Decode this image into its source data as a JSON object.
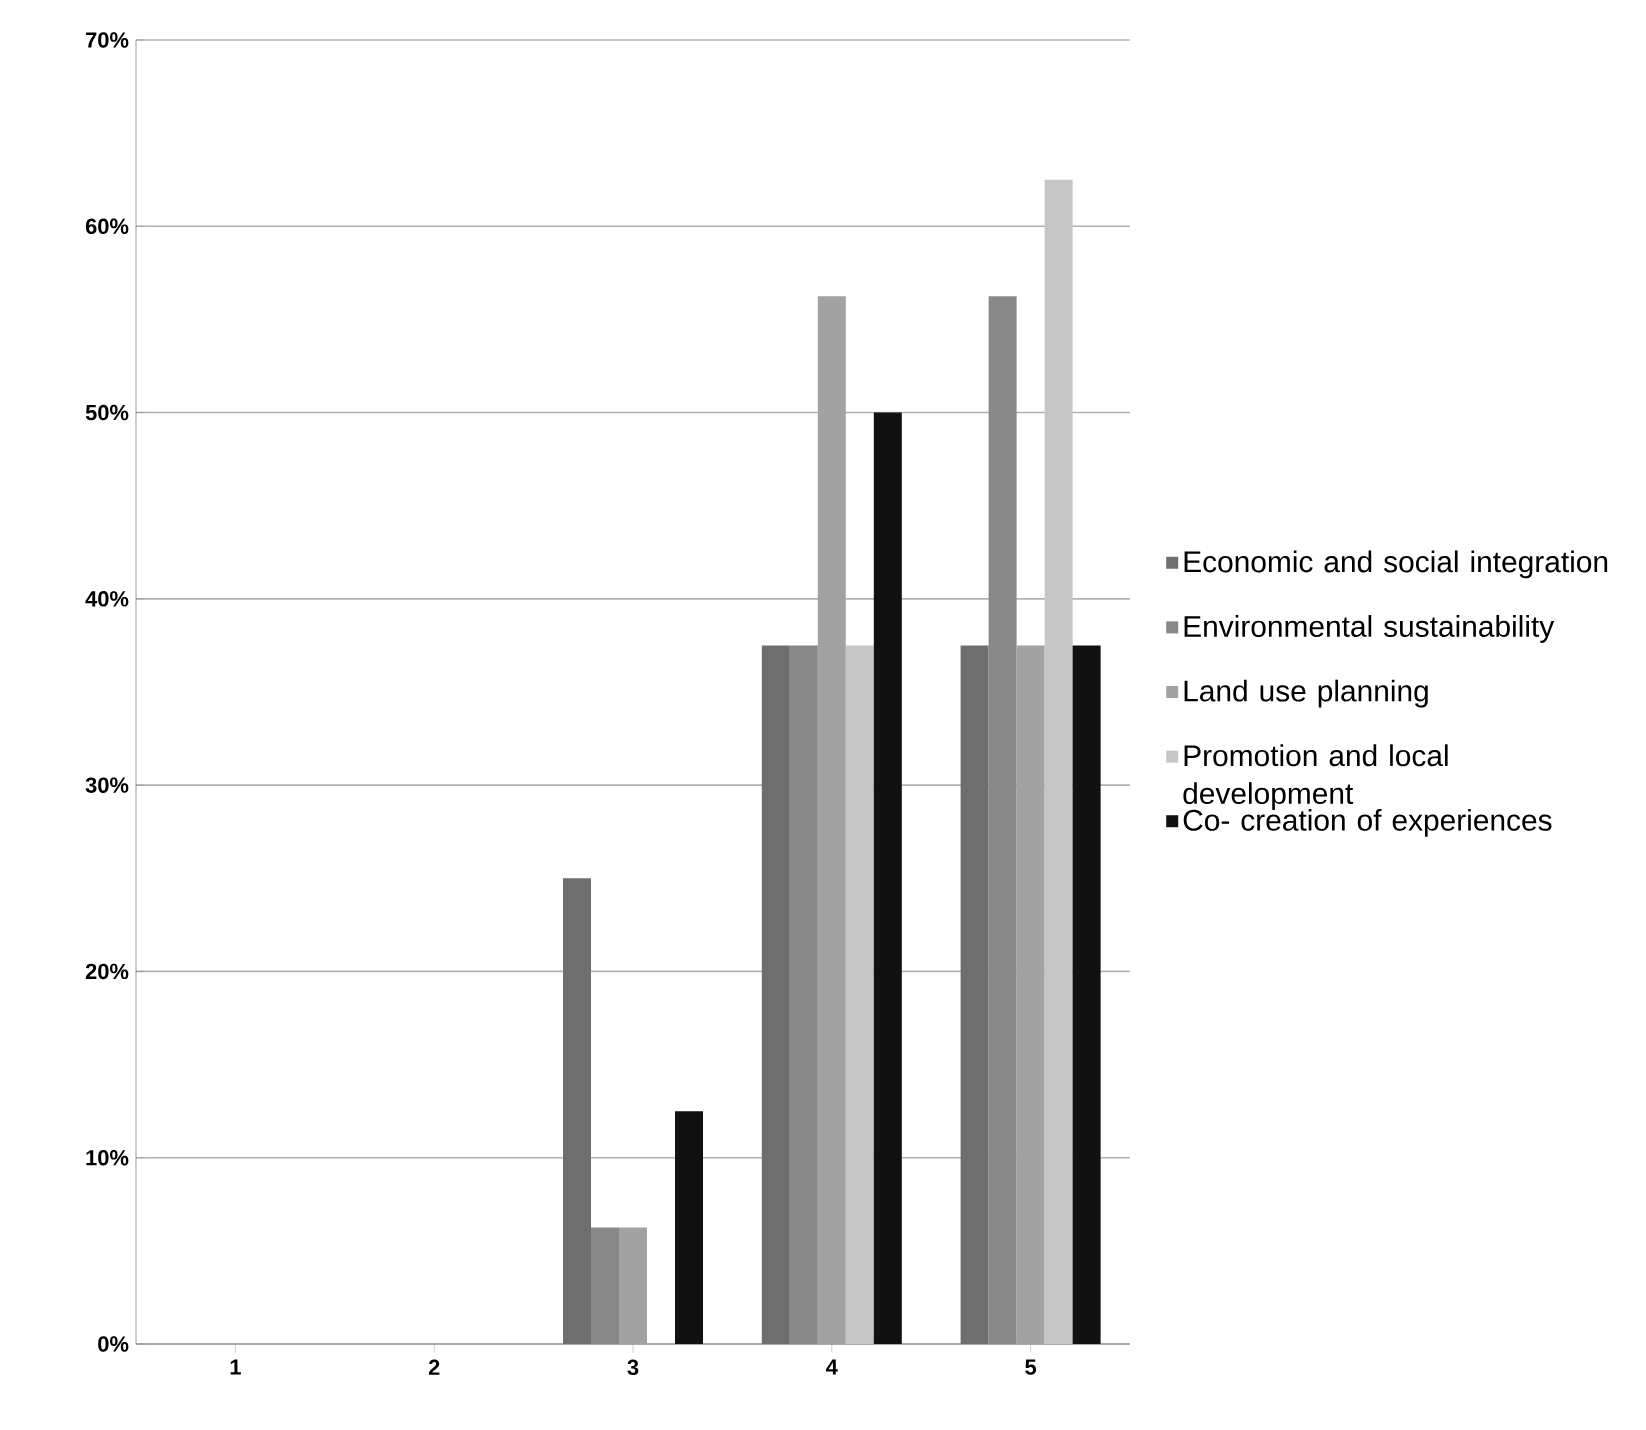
{
  "chart_data": {
    "type": "bar",
    "categories": [
      "1",
      "2",
      "3",
      "4",
      "5"
    ],
    "series": [
      {
        "name": "Economic and social integration",
        "color": "#6e6e6e",
        "values": [
          0,
          0,
          25,
          37.5,
          37.5
        ]
      },
      {
        "name": "Environmental sustainability",
        "color": "#888888",
        "values": [
          0,
          0,
          6.25,
          37.5,
          56.25
        ]
      },
      {
        "name": "Land use planning",
        "color": "#a2a2a2",
        "values": [
          0,
          0,
          6.25,
          56.25,
          37.5
        ]
      },
      {
        "name": "Promotion and local development",
        "color": "#c6c6c6",
        "values": [
          0,
          0,
          0,
          37.5,
          62.5
        ]
      },
      {
        "name": "Co- creation of experiences",
        "color": "#111111",
        "values": [
          0,
          0,
          12.5,
          50,
          37.5
        ]
      }
    ],
    "ylim": [
      0,
      70
    ],
    "yticks": [
      {
        "value": 0,
        "label": "0%"
      },
      {
        "value": 10,
        "label": "10%"
      },
      {
        "value": 20,
        "label": "20%"
      },
      {
        "value": 30,
        "label": "30%"
      },
      {
        "value": 40,
        "label": "40%"
      },
      {
        "value": 50,
        "label": "50%"
      },
      {
        "value": 60,
        "label": "60%"
      },
      {
        "value": 70,
        "label": "70%"
      }
    ],
    "grid": "y",
    "legend": "right"
  }
}
